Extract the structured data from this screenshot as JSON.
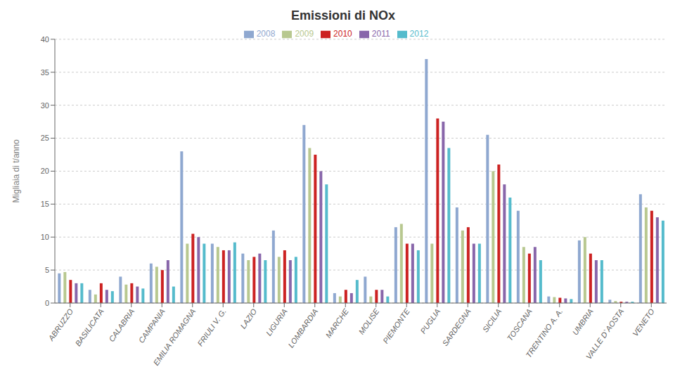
{
  "chart_data": {
    "type": "bar",
    "title": "Emissioni di NOx",
    "ylabel": "Migliaia di t/anno",
    "categories": [
      "ABRUZZO",
      "BASILICATA",
      "CALABRIA",
      "CAMPANIA",
      "EMILIA ROMAGNA",
      "FRIULI V. G.",
      "LAZIO",
      "LIGURIA",
      "LOMBARDIA",
      "MARCHE",
      "MOLISE",
      "PIEMONTE",
      "PUGLIA",
      "SARDEGNA",
      "SICILIA",
      "TOSCANA",
      "TRENTINO A. A.",
      "UMBRIA",
      "VALLE D`AOSTA",
      "VENETO"
    ],
    "series": [
      {
        "name": "2008",
        "color": "#8FA8D0",
        "values": [
          4.5,
          2.0,
          4.0,
          6.0,
          23.0,
          9.0,
          7.5,
          11.0,
          27.0,
          1.5,
          4.0,
          11.5,
          37.0,
          14.5,
          25.5,
          14.0,
          1.0,
          9.5,
          0.5,
          16.5
        ]
      },
      {
        "name": "2009",
        "color": "#B8C890",
        "values": [
          4.7,
          1.3,
          2.8,
          5.5,
          9.0,
          8.5,
          6.5,
          7.0,
          23.5,
          1.0,
          1.0,
          12.0,
          9.0,
          11.0,
          20.0,
          8.5,
          0.9,
          10.0,
          0.3,
          14.5
        ]
      },
      {
        "name": "2010",
        "color": "#CC2222",
        "values": [
          3.5,
          3.0,
          3.0,
          5.0,
          10.5,
          8.0,
          7.0,
          8.0,
          22.5,
          2.0,
          2.0,
          9.0,
          28.0,
          11.5,
          21.0,
          7.5,
          0.8,
          7.5,
          0.2,
          14.0
        ]
      },
      {
        "name": "2011",
        "color": "#8866AA",
        "values": [
          3.0,
          2.0,
          2.5,
          6.5,
          10.0,
          8.0,
          7.5,
          6.5,
          20.0,
          1.5,
          2.0,
          9.0,
          27.5,
          9.0,
          18.0,
          8.5,
          0.7,
          6.5,
          0.2,
          13.0
        ]
      },
      {
        "name": "2012",
        "color": "#55BBCC",
        "values": [
          3.0,
          1.8,
          2.2,
          2.5,
          9.0,
          9.2,
          6.5,
          7.0,
          18.0,
          3.5,
          1.0,
          8.0,
          23.5,
          9.0,
          16.0,
          6.5,
          0.6,
          6.5,
          0.2,
          12.5
        ]
      }
    ],
    "ylim": [
      0,
      40
    ],
    "yticks": [
      0,
      5,
      10,
      15,
      20,
      25,
      30,
      35,
      40
    ],
    "grid": true,
    "legend": "top"
  }
}
